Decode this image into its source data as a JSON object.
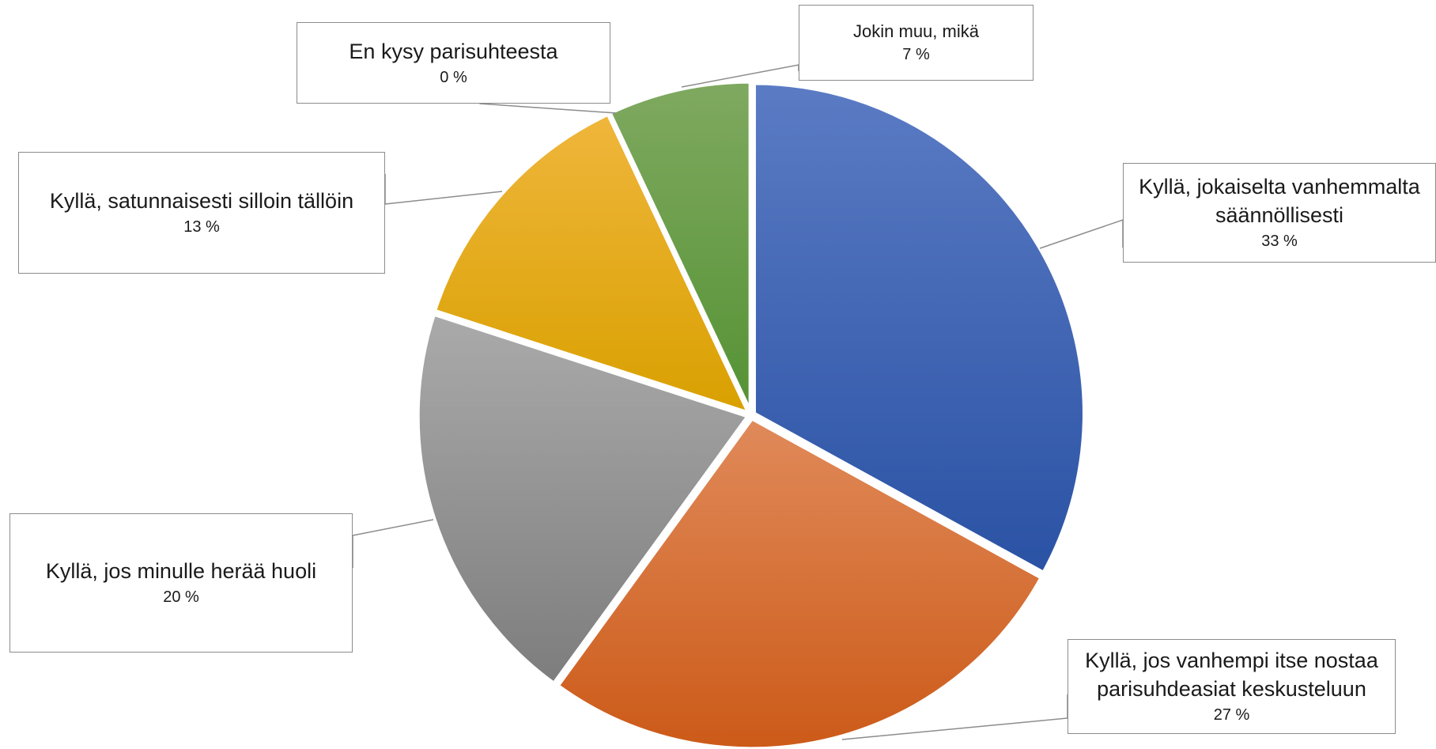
{
  "chart_data": {
    "type": "pie",
    "title": "",
    "start_angle_deg": 0,
    "direction": "clockwise",
    "value_suffix": " %",
    "slices": [
      {
        "label": "Kyllä, jokaiselta vanhemmalta säännöllisesti",
        "value": 33,
        "color_top": "#5b7bc4",
        "color_bottom": "#2a52a4"
      },
      {
        "label": "Kyllä, jos vanhempi itse nostaa parisuhdeasiat keskusteluun",
        "value": 27,
        "color_top": "#e08a5a",
        "color_bottom": "#cc5a18"
      },
      {
        "label": "Kyllä, jos minulle herää huoli",
        "value": 20,
        "color_top": "#aaaaaa",
        "color_bottom": "#7d7d7d"
      },
      {
        "label": "Kyllä, satunnaisesti silloin tällöin",
        "value": 13,
        "color_top": "#efb63c",
        "color_bottom": "#d9a000"
      },
      {
        "label": "En kysy parisuhteesta",
        "value": 0,
        "color_top": "#8e8e8e",
        "color_bottom": "#8e8e8e"
      },
      {
        "label": "Jokin muu, mikä",
        "value": 7,
        "color_top": "#7fa960",
        "color_bottom": "#559234"
      }
    ]
  },
  "callouts": [
    {
      "name": "Kyllä, jokaiselta vanhemmalta\nsäännöllisesti",
      "pct": "33 %"
    },
    {
      "name": "Kyllä, jos vanhempi itse nostaa\nparisuhdeasiat keskusteluun",
      "pct": "27 %"
    },
    {
      "name": "Kyllä, jos minulle herää huoli",
      "pct": "20 %"
    },
    {
      "name": "Kyllä, satunnaisesti silloin tällöin",
      "pct": "13 %"
    },
    {
      "name": "En kysy parisuhteesta",
      "pct": "0 %"
    },
    {
      "name": "Jokin muu, mikä",
      "pct": "7 %"
    }
  ]
}
